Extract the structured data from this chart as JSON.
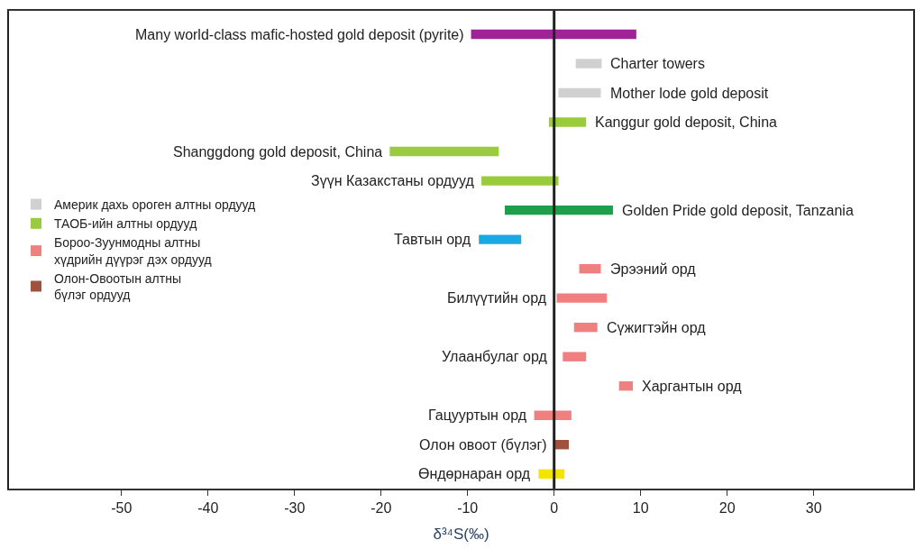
{
  "chart_data": {
    "type": "bar",
    "orientation": "horizontal",
    "tick_labels": "x",
    "categories": [
      "Many world-class mafic-hosted gold deposit (pyrite)",
      "Charter towers",
      "Mother lode gold deposit",
      "Kanggur gold deposit, China",
      "Shanggdong gold deposit, China",
      "Зүүн Казакстаны ордууд",
      "Golden Pride gold deposit, Tanzania",
      "Тавтын орд",
      "Эрээний орд",
      "Билүүтийн орд",
      "Сүжигтэйн орд",
      "Улаанбулаг орд",
      "Харгантын орд",
      "Гацууртын орд",
      "Олон овоот (бүлэг)",
      "Өндөрнаран орд"
    ],
    "series": [
      {
        "color": "#a0229a",
        "base": [
          -9.6,
          null,
          null,
          null,
          null,
          null,
          null,
          null,
          null,
          null,
          null,
          null,
          null,
          null,
          null,
          null
        ],
        "values": [
          19.1,
          null,
          null,
          null,
          null,
          null,
          null,
          null,
          null,
          null,
          null,
          null,
          null,
          null,
          null,
          null
        ]
      },
      {
        "name": "Америк дахь ороген алтны ордууд",
        "color": "#d0d0d0",
        "base": [
          null,
          2.5,
          0.5,
          null,
          null,
          null,
          null,
          null,
          null,
          null,
          null,
          null,
          null,
          null,
          null,
          null
        ],
        "values": [
          null,
          3.0,
          4.9,
          null,
          null,
          null,
          null,
          null,
          null,
          null,
          null,
          null,
          null,
          null,
          null,
          null
        ]
      },
      {
        "name": "ТАОБ-ийн алтны ордууд",
        "color": "#9acb3c",
        "base": [
          null,
          null,
          null,
          -0.6,
          -19,
          -8.4,
          null,
          null,
          null,
          null,
          null,
          null,
          null,
          null,
          null,
          null
        ],
        "values": [
          null,
          null,
          null,
          4.3,
          12.6,
          8.9,
          null,
          null,
          null,
          null,
          null,
          null,
          null,
          null,
          null,
          null
        ]
      },
      {
        "color": "#1aa14a",
        "base": [
          null,
          null,
          null,
          null,
          null,
          null,
          -5.7,
          null,
          null,
          null,
          null,
          null,
          null,
          null,
          null,
          null
        ],
        "values": [
          null,
          null,
          null,
          null,
          null,
          null,
          12.5,
          null,
          null,
          null,
          null,
          null,
          null,
          null,
          null,
          null
        ]
      },
      {
        "color": "#1ba9e1",
        "base": [
          null,
          null,
          null,
          null,
          null,
          null,
          null,
          -8.7,
          null,
          null,
          null,
          null,
          null,
          null,
          null,
          null
        ],
        "values": [
          null,
          null,
          null,
          null,
          null,
          null,
          null,
          4.9,
          null,
          null,
          null,
          null,
          null,
          null,
          null,
          null
        ]
      },
      {
        "name": "Бороо-Зуунмодны алтны\nхүдрийн дүүрэг дэх ордууд",
        "color": "#f08080",
        "base": [
          null,
          null,
          null,
          null,
          null,
          null,
          null,
          null,
          2.9,
          0.3,
          2.3,
          1.0,
          7.5,
          -2.3,
          null,
          null
        ],
        "values": [
          null,
          null,
          null,
          null,
          null,
          null,
          null,
          null,
          2.5,
          5.8,
          2.7,
          2.7,
          1.6,
          4.3,
          null,
          null
        ]
      },
      {
        "name": "Олон-Овоотын алтны\nбүлэг ордууд",
        "color": "#a0523c",
        "base": [
          null,
          null,
          null,
          null,
          null,
          null,
          null,
          null,
          null,
          null,
          null,
          null,
          null,
          null,
          0,
          null
        ],
        "values": [
          null,
          null,
          null,
          null,
          null,
          null,
          null,
          null,
          null,
          null,
          null,
          null,
          null,
          null,
          1.7,
          null
        ]
      },
      {
        "color": "#f5e400",
        "base": [
          null,
          null,
          null,
          null,
          null,
          null,
          null,
          null,
          null,
          null,
          null,
          null,
          null,
          null,
          null,
          -1.8
        ],
        "values": [
          null,
          null,
          null,
          null,
          null,
          null,
          null,
          null,
          null,
          null,
          null,
          null,
          null,
          null,
          null,
          3.0
        ]
      }
    ],
    "xlim": [
      -63,
      41.5
    ],
    "xticks": [
      -50,
      -40,
      -30,
      -20,
      -10,
      0,
      10,
      20,
      30
    ],
    "xlabel": "δ³⁴S(‰)",
    "ref_lines": [
      {
        "axis": "x",
        "value": 0,
        "color": "#222222"
      }
    ],
    "legend": "left"
  }
}
